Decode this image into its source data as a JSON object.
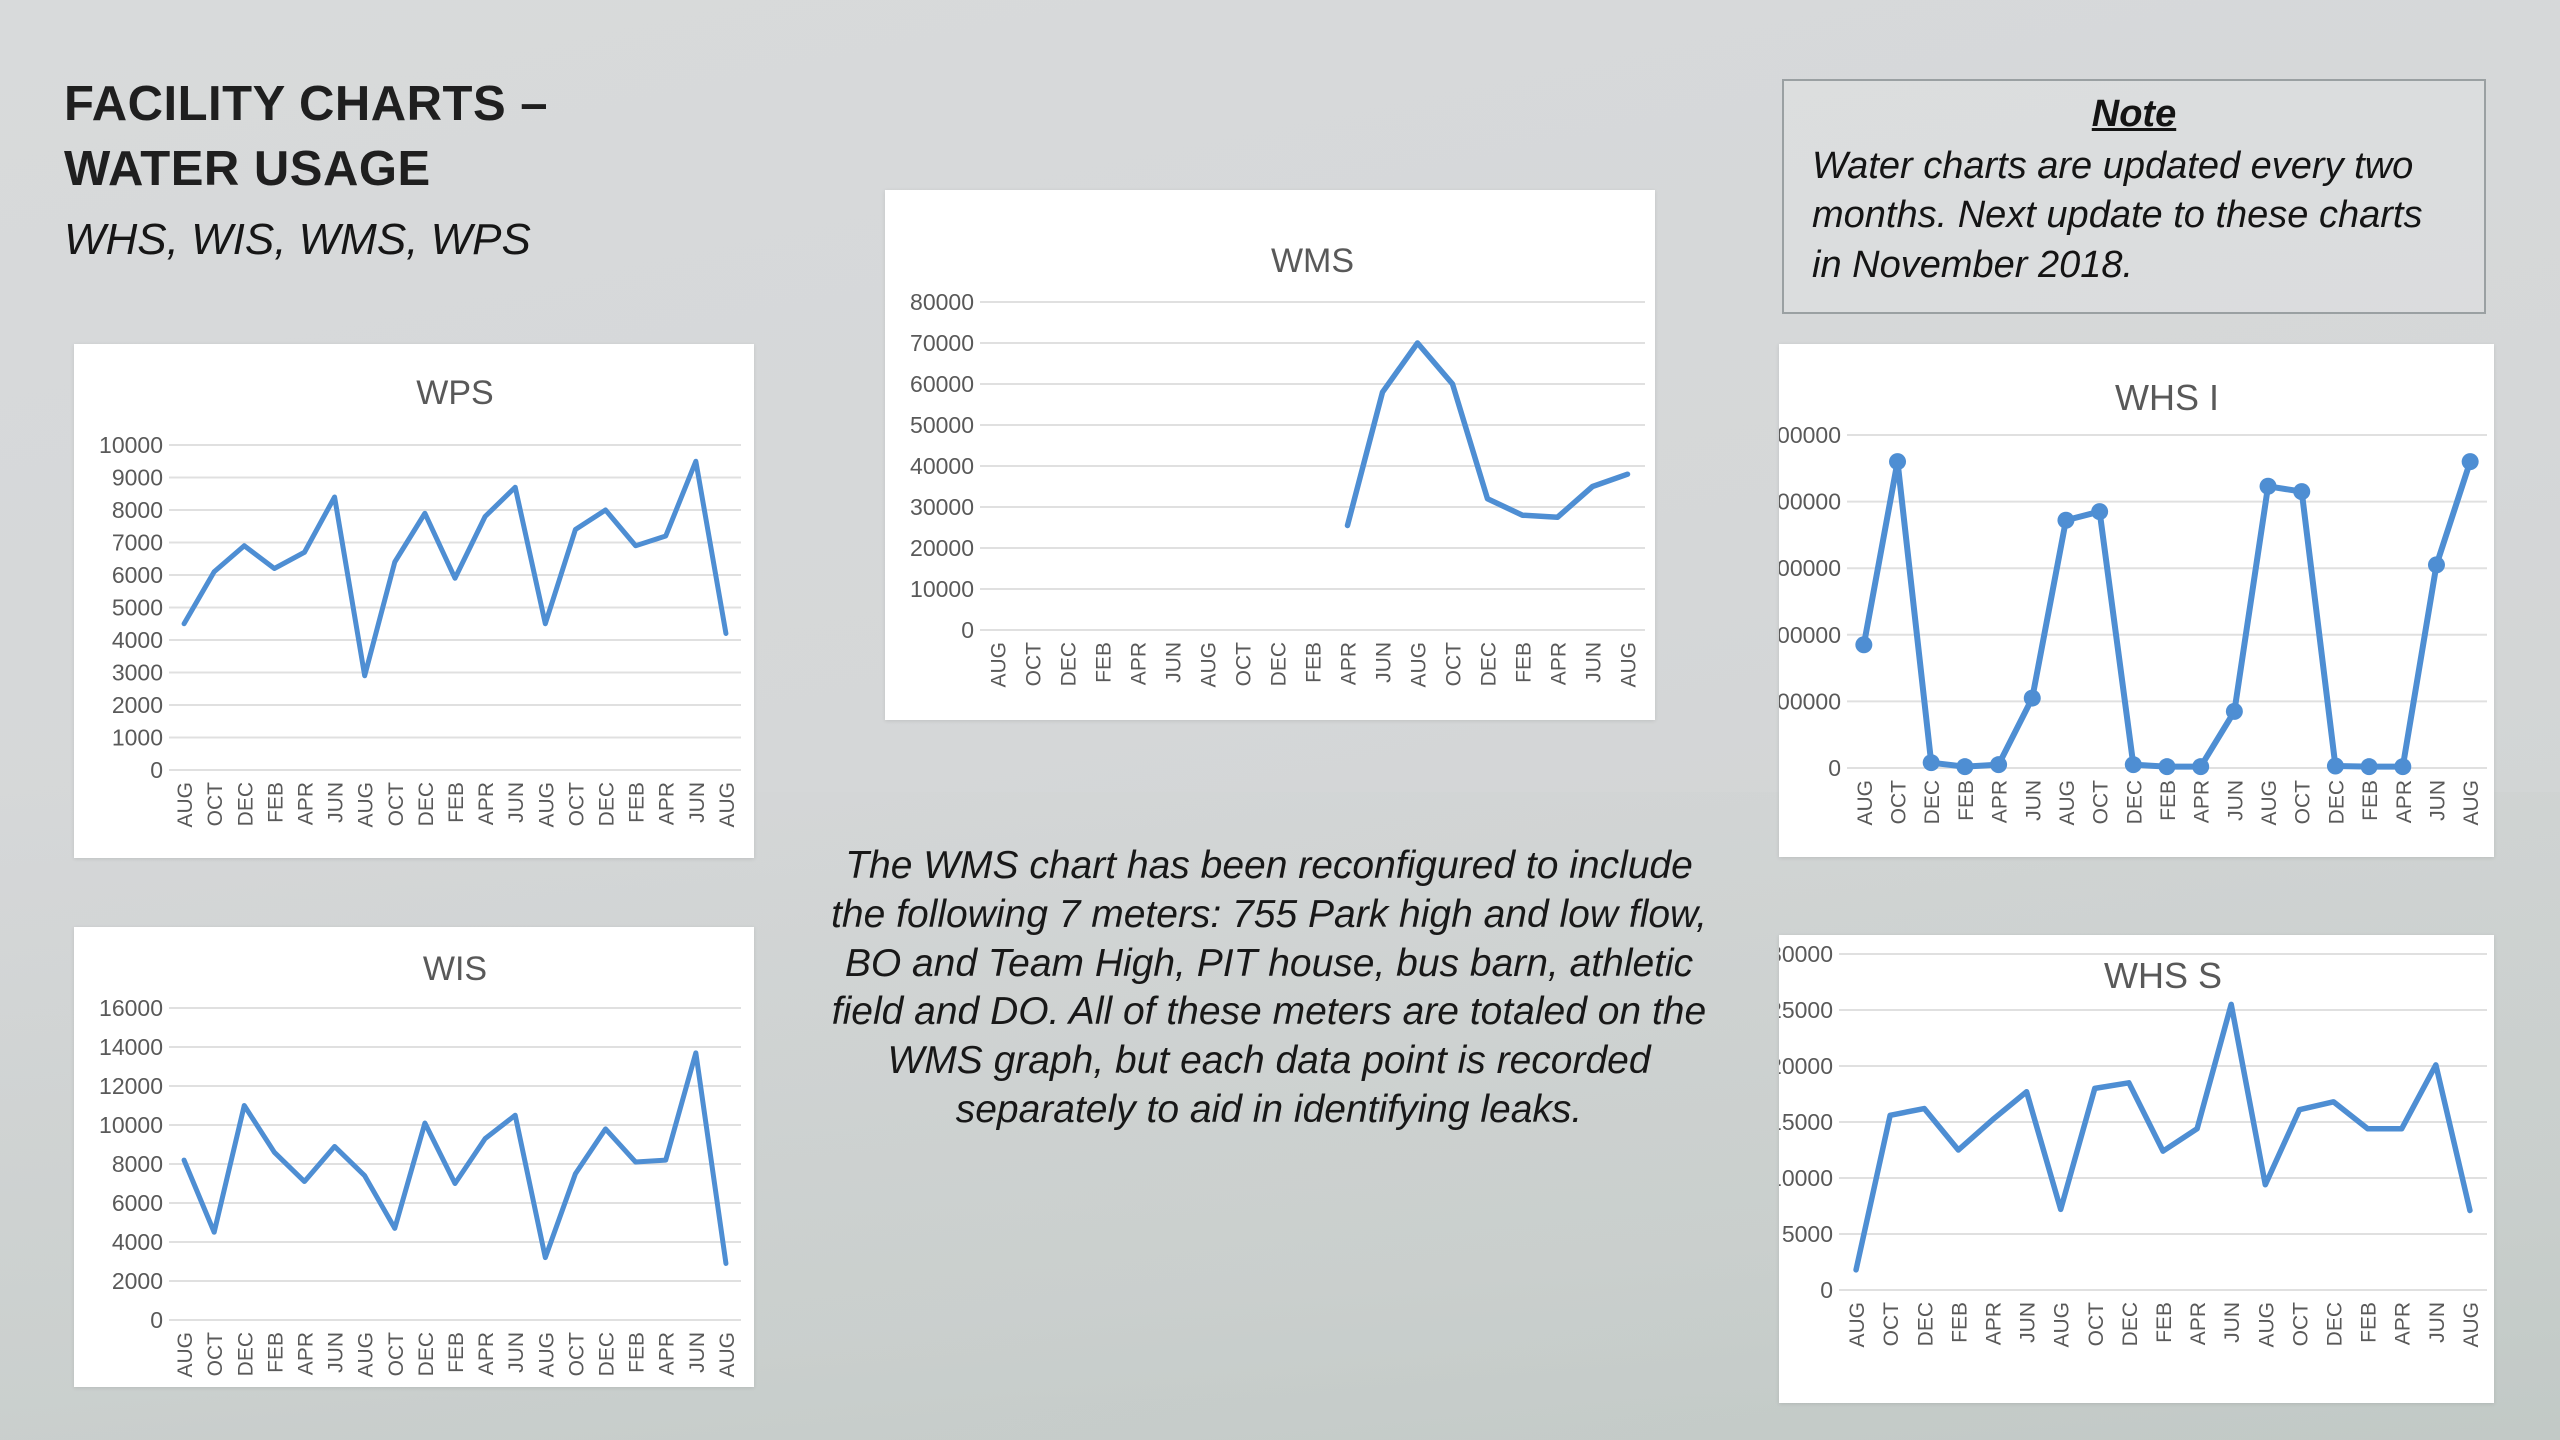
{
  "header": {
    "title_line1": "FACILITY CHARTS –",
    "title_line2": "WATER USAGE",
    "subtitle": "WHS, WIS, WMS, WPS"
  },
  "note": {
    "heading": "Note",
    "body": "Water charts are updated every two months. Next update to these charts in November 2018."
  },
  "annotation": "The WMS chart has been reconfigured to include the following 7 meters: 755 Park high and low flow, BO and Team High, PIT house, bus barn, athletic field and DO. All of these meters are totaled on the WMS graph, but each data point is recorded separately to aid in identifying leaks.",
  "colors": {
    "line": "#4e8ed3",
    "grid": "#e0e0e0",
    "axis_text": "#595959",
    "chart_title": "#595959",
    "chart_bg": "#ffffff",
    "slide_bg": "#d5d7d8"
  },
  "chart_data": [
    {
      "id": "wps",
      "type": "line",
      "title": "WPS",
      "categories": [
        "AUG",
        "OCT",
        "DEC",
        "FEB",
        "APR",
        "JUN",
        "AUG",
        "OCT",
        "DEC",
        "FEB",
        "APR",
        "JUN",
        "AUG",
        "OCT",
        "DEC",
        "FEB",
        "APR",
        "JUN",
        "AUG"
      ],
      "values": [
        4500,
        6100,
        6900,
        6200,
        6700,
        8400,
        2900,
        6400,
        7900,
        5900,
        7800,
        8700,
        4500,
        7400,
        8000,
        6900,
        7200,
        9500,
        4200
      ],
      "ylim": [
        0,
        10000
      ],
      "ytick_step": 1000,
      "markers": false,
      "grid": true,
      "legend": "none"
    },
    {
      "id": "wms",
      "type": "line",
      "title": "WMS",
      "categories": [
        "AUG",
        "OCT",
        "DEC",
        "FEB",
        "APR",
        "JUN",
        "AUG",
        "OCT",
        "DEC",
        "FEB",
        "APR",
        "JUN",
        "AUG",
        "OCT",
        "DEC",
        "FEB",
        "APR",
        "JUN",
        "AUG"
      ],
      "values": [
        null,
        null,
        null,
        null,
        null,
        null,
        null,
        null,
        null,
        null,
        25500,
        58000,
        70000,
        60000,
        32000,
        28000,
        27500,
        35000,
        38000
      ],
      "ylim": [
        0,
        80000
      ],
      "ytick_step": 10000,
      "markers": false,
      "grid": true,
      "legend": "none"
    },
    {
      "id": "whs_i",
      "type": "line",
      "title": "WHS I",
      "categories": [
        "AUG",
        "OCT",
        "DEC",
        "FEB",
        "APR",
        "JUN",
        "AUG",
        "OCT",
        "DEC",
        "FEB",
        "APR",
        "JUN",
        "AUG",
        "OCT",
        "DEC",
        "FEB",
        "APR",
        "JUN",
        "AUG"
      ],
      "values": [
        185000,
        460000,
        8000,
        2000,
        5000,
        105000,
        372000,
        385000,
        5000,
        2000,
        2000,
        85000,
        423000,
        415000,
        3000,
        2000,
        2000,
        305000,
        460000
      ],
      "ylim": [
        0,
        500000
      ],
      "ytick_step": 100000,
      "markers": true,
      "grid": true,
      "legend": "none"
    },
    {
      "id": "wis",
      "type": "line",
      "title": "WIS",
      "categories": [
        "AUG",
        "OCT",
        "DEC",
        "FEB",
        "APR",
        "JUN",
        "AUG",
        "OCT",
        "DEC",
        "FEB",
        "APR",
        "JUN",
        "AUG",
        "OCT",
        "DEC",
        "FEB",
        "APR",
        "JUN",
        "AUG"
      ],
      "values": [
        8200,
        4500,
        11000,
        8600,
        7100,
        8900,
        7400,
        4700,
        10100,
        7000,
        9300,
        10500,
        3200,
        7500,
        9800,
        8100,
        8200,
        13700,
        2900
      ],
      "ylim": [
        0,
        16000
      ],
      "ytick_step": 2000,
      "markers": false,
      "grid": true,
      "legend": "none"
    },
    {
      "id": "whs_s",
      "type": "line",
      "title": "WHS S",
      "categories": [
        "AUG",
        "OCT",
        "DEC",
        "FEB",
        "APR",
        "JUN",
        "AUG",
        "OCT",
        "DEC",
        "FEB",
        "APR",
        "JUN",
        "AUG",
        "OCT",
        "DEC",
        "FEB",
        "APR",
        "JUN",
        "AUG"
      ],
      "values": [
        1800,
        15600,
        16200,
        12500,
        15200,
        17700,
        7200,
        18000,
        18500,
        12400,
        14400,
        25500,
        9400,
        16100,
        16800,
        14400,
        14400,
        20100,
        7100
      ],
      "ylim": [
        0,
        30000
      ],
      "ytick_step": 5000,
      "markers": false,
      "grid": true,
      "legend": "none"
    }
  ]
}
